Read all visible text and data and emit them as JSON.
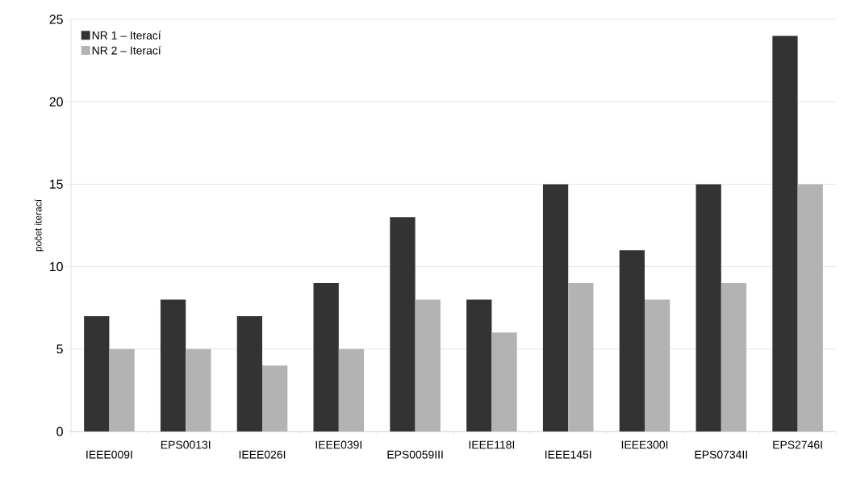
{
  "chart_data": {
    "type": "bar",
    "ylabel": "počet iterací",
    "categories": [
      "IEEE009I",
      "EPS0013I",
      "IEEE026I",
      "IEEE039I",
      "EPS0059III",
      "IEEE118I",
      "IEEE145I",
      "IEEE300I",
      "EPS0734II",
      "EPS2746I"
    ],
    "series": [
      {
        "name": "NR 1 – Iterací",
        "color": "#333333",
        "values": [
          7,
          8,
          7,
          9,
          13,
          8,
          15,
          11,
          15,
          24
        ]
      },
      {
        "name": "NR 2 – Iterací",
        "color": "#b3b3b3",
        "values": [
          5,
          5,
          4,
          5,
          8,
          6,
          9,
          8,
          9,
          15
        ]
      }
    ],
    "ylim": [
      0,
      25
    ],
    "yticks": [
      0,
      5,
      10,
      15,
      20,
      25
    ],
    "grid": "y",
    "legend": "top left"
  }
}
